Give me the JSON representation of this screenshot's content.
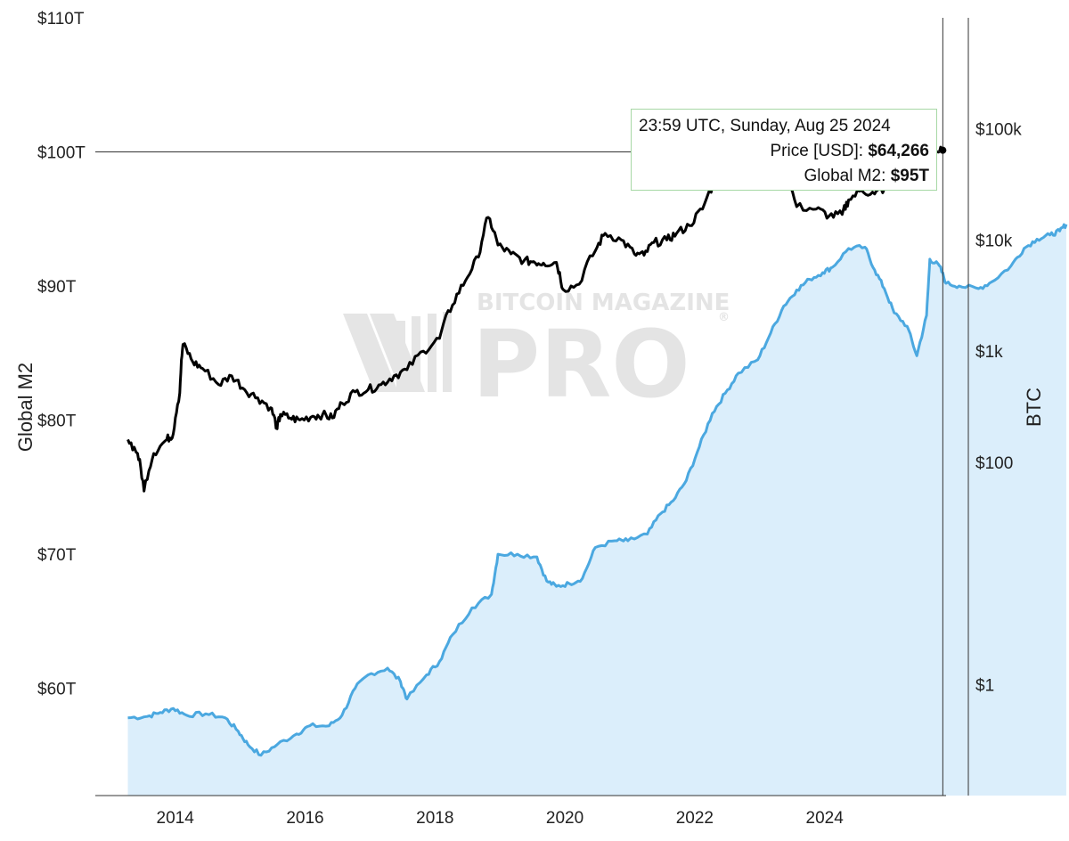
{
  "chart_data": {
    "type": "line",
    "xlabel": "",
    "x_ticks": [
      "2014",
      "2016",
      "2018",
      "2020",
      "2022",
      "2024"
    ],
    "y_left": {
      "label": "Global M2",
      "ticks": [
        "$60T",
        "$70T",
        "$80T",
        "$90T",
        "$100T",
        "$110T"
      ],
      "range": [
        52.0,
        110.0
      ]
    },
    "y_right": {
      "label": "BTC",
      "scale": "log",
      "ticks": [
        "$1",
        "$100",
        "$1k",
        "$10k",
        "$100k"
      ],
      "tick_values": [
        1,
        100,
        1000,
        10000,
        100000
      ],
      "range": [
        0.1,
        1000000
      ]
    },
    "series": [
      {
        "name": "Global M2",
        "axis": "left",
        "style": "area",
        "color": "#4ba8e0",
        "fill": "#dbeefb",
        "points": [
          [
            2013.3,
            57.8
          ],
          [
            2013.6,
            57.9
          ],
          [
            2013.8,
            58.2
          ],
          [
            2014.0,
            58.5
          ],
          [
            2014.2,
            58.0
          ],
          [
            2014.5,
            58.1
          ],
          [
            2014.8,
            57.8
          ],
          [
            2015.0,
            56.8
          ],
          [
            2015.15,
            55.8
          ],
          [
            2015.35,
            55.0
          ],
          [
            2015.6,
            55.8
          ],
          [
            2015.9,
            56.6
          ],
          [
            2016.1,
            57.2
          ],
          [
            2016.4,
            57.2
          ],
          [
            2016.6,
            58.0
          ],
          [
            2016.8,
            60.0
          ],
          [
            2017.0,
            61.0
          ],
          [
            2017.3,
            61.5
          ],
          [
            2017.5,
            60.5
          ],
          [
            2017.6,
            59.2
          ],
          [
            2017.9,
            61.0
          ],
          [
            2018.1,
            62.0
          ],
          [
            2018.3,
            64.0
          ],
          [
            2018.6,
            66.0
          ],
          [
            2018.9,
            67.0
          ],
          [
            2019.0,
            70.0
          ],
          [
            2019.3,
            70.0
          ],
          [
            2019.6,
            69.8
          ],
          [
            2019.75,
            68.0
          ],
          [
            2019.9,
            67.6
          ],
          [
            2020.1,
            67.8
          ],
          [
            2020.3,
            68.2
          ],
          [
            2020.5,
            70.5
          ],
          [
            2020.8,
            71.0
          ],
          [
            2021.0,
            71.0
          ],
          [
            2021.3,
            71.5
          ],
          [
            2021.5,
            73.0
          ],
          [
            2021.7,
            74.0
          ],
          [
            2021.9,
            75.5
          ],
          [
            2022.1,
            78.0
          ],
          [
            2022.3,
            80.5
          ],
          [
            2022.5,
            82.0
          ],
          [
            2022.7,
            83.5
          ],
          [
            2023.0,
            84.5
          ],
          [
            2023.2,
            86.5
          ],
          [
            2023.4,
            88.5
          ],
          [
            2023.6,
            89.7
          ],
          [
            2023.8,
            90.5
          ],
          [
            2024.0,
            91.0
          ],
          [
            2024.15,
            91.4
          ],
          [
            2024.4,
            92.8
          ],
          [
            2024.65,
            92.9
          ],
          [
            2024.8,
            91.2
          ],
          [
            2024.95,
            89.8
          ],
          [
            2025.1,
            88.0
          ],
          [
            2025.3,
            87.0
          ],
          [
            2025.45,
            84.8
          ],
          [
            2025.6,
            87.8
          ],
          [
            2025.65,
            92.0
          ],
          [
            2025.8,
            91.5
          ],
          [
            2025.9,
            90.2
          ],
          [
            2026.1,
            90.0
          ],
          [
            2026.4,
            89.8
          ],
          [
            2026.6,
            90.3
          ],
          [
            2026.9,
            91.5
          ],
          [
            2027.1,
            92.8
          ],
          [
            2027.3,
            93.5
          ],
          [
            2027.5,
            93.8
          ],
          [
            2027.65,
            94.1
          ],
          [
            2027.75,
            94.6
          ]
        ]
      },
      {
        "name": "Price [USD]",
        "axis": "right",
        "style": "line",
        "color": "#000000",
        "points": [
          [
            2013.3,
            160
          ],
          [
            2013.45,
            120
          ],
          [
            2013.55,
            55
          ],
          [
            2013.7,
            120
          ],
          [
            2013.9,
            160
          ],
          [
            2014.0,
            180
          ],
          [
            2014.1,
            420
          ],
          [
            2014.15,
            1150
          ],
          [
            2014.3,
            800
          ],
          [
            2014.45,
            700
          ],
          [
            2014.7,
            500
          ],
          [
            2014.9,
            600
          ],
          [
            2015.1,
            450
          ],
          [
            2015.3,
            380
          ],
          [
            2015.5,
            310
          ],
          [
            2015.6,
            200
          ],
          [
            2015.65,
            270
          ],
          [
            2015.8,
            250
          ],
          [
            2015.95,
            240
          ],
          [
            2016.15,
            260
          ],
          [
            2016.3,
            270
          ],
          [
            2016.45,
            250
          ],
          [
            2016.6,
            340
          ],
          [
            2016.8,
            430
          ],
          [
            2017.0,
            450
          ],
          [
            2017.2,
            500
          ],
          [
            2017.4,
            600
          ],
          [
            2017.6,
            680
          ],
          [
            2017.85,
            1000
          ],
          [
            2018.1,
            1300
          ],
          [
            2018.3,
            2600
          ],
          [
            2018.5,
            4300
          ],
          [
            2018.7,
            7000
          ],
          [
            2018.85,
            16000
          ],
          [
            2019.0,
            9000
          ],
          [
            2019.2,
            7500
          ],
          [
            2019.4,
            6500
          ],
          [
            2019.55,
            6400
          ],
          [
            2019.7,
            6200
          ],
          [
            2019.9,
            6300
          ],
          [
            2020.0,
            3600
          ],
          [
            2020.25,
            4000
          ],
          [
            2020.5,
            8000
          ],
          [
            2020.65,
            11500
          ],
          [
            2020.9,
            10000
          ],
          [
            2021.1,
            7500
          ],
          [
            2021.25,
            7300
          ],
          [
            2021.4,
            9500
          ],
          [
            2021.6,
            10000
          ],
          [
            2021.75,
            11500
          ],
          [
            2021.95,
            13500
          ],
          [
            2022.15,
            19000
          ],
          [
            2022.35,
            34000
          ],
          [
            2022.6,
            56000
          ],
          [
            2022.8,
            60000
          ],
          [
            2023.0,
            33000
          ],
          [
            2023.1,
            45000
          ],
          [
            2023.2,
            60000
          ],
          [
            2023.35,
            45000
          ],
          [
            2023.4,
            40000
          ],
          [
            2023.6,
            20000
          ],
          [
            2023.9,
            19000
          ],
          [
            2024.1,
            16500
          ],
          [
            2024.3,
            17000
          ],
          [
            2024.4,
            23000
          ],
          [
            2024.6,
            28000
          ],
          [
            2024.8,
            26000
          ],
          [
            2024.95,
            29000
          ],
          [
            2025.1,
            35000
          ],
          [
            2025.3,
            60000
          ],
          [
            2025.6,
            65000
          ],
          [
            2025.75,
            62000
          ],
          [
            2025.85,
            64266
          ]
        ]
      }
    ],
    "crosshair": {
      "x": 2025.85,
      "y_left": 100.0
    },
    "tooltip": {
      "date": "23:59 UTC, Sunday, Aug 25 2024",
      "price_label": "Price [USD]: ",
      "price_value": "$64,266",
      "m2_label": "Global M2: ",
      "m2_value": "$95T"
    },
    "watermark": {
      "top": "BITCOIN MAGAZINE",
      "bottom": "PRO",
      "registered": "®"
    }
  }
}
